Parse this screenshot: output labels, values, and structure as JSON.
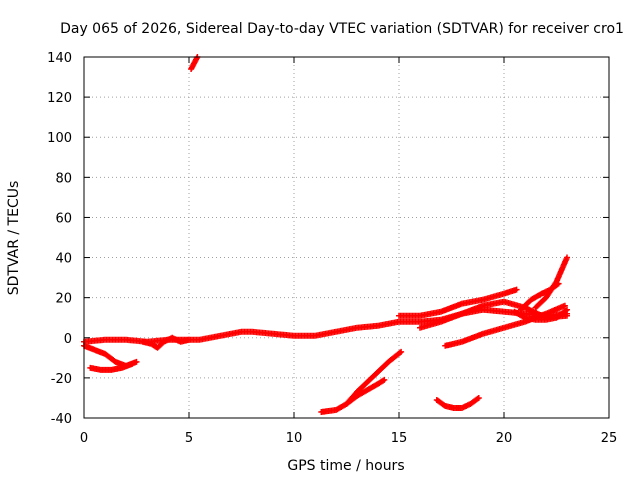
{
  "chart_data": {
    "type": "scatter",
    "title": "Day 065 of 2026, Sidereal Day-to-day VTEC variation (SDTVAR) for receiver cro1",
    "xlabel": "GPS time / hours",
    "ylabel": "SDTVAR / TECUs",
    "xlim": [
      0,
      25
    ],
    "ylim": [
      -40,
      140
    ],
    "xticks": [
      0,
      5,
      10,
      15,
      20,
      25
    ],
    "yticks": [
      -40,
      -20,
      0,
      20,
      40,
      60,
      80,
      100,
      120,
      140
    ],
    "xtick_labels": [
      "0",
      "5",
      "10",
      "15",
      "20",
      "25"
    ],
    "ytick_labels": [
      "-40",
      "-20",
      "0",
      "20",
      "40",
      "60",
      "80",
      "100",
      "120",
      "140"
    ],
    "grid": true,
    "marker": "+",
    "color": "#ff0000",
    "series": [
      {
        "name": "main-trace",
        "x": [
          0,
          1,
          2,
          3,
          4,
          5,
          5.5,
          6,
          7,
          7.5,
          8,
          9,
          10,
          11,
          12,
          13,
          14,
          15,
          16,
          17,
          18,
          19,
          20,
          21,
          22,
          23
        ],
        "y": [
          -2,
          -1,
          -1,
          -2,
          -1,
          -1,
          -1,
          0,
          2,
          3,
          3,
          2,
          1,
          1,
          3,
          5,
          6,
          8,
          8,
          9,
          12,
          14,
          13,
          12,
          11,
          12
        ]
      },
      {
        "name": "early-dip",
        "x": [
          0,
          0.5,
          1,
          1.5,
          2,
          2.5
        ],
        "y": [
          -4,
          -6,
          -8,
          -12,
          -14,
          -12
        ]
      },
      {
        "name": "low-start",
        "x": [
          0.3,
          0.8,
          1.3,
          1.8,
          2.3
        ],
        "y": [
          -15,
          -16,
          -16,
          -15,
          -13
        ]
      },
      {
        "name": "wiggle-3-5",
        "x": [
          2.8,
          3.2,
          3.5,
          3.8,
          4.2,
          4.6,
          5.0
        ],
        "y": [
          -2,
          -3,
          -5,
          -2,
          0,
          -2,
          -1
        ]
      },
      {
        "name": "high-spike",
        "x": [
          5.1,
          5.2,
          5.3,
          5.4
        ],
        "y": [
          134,
          136,
          138,
          140
        ]
      },
      {
        "name": "descending-arc",
        "x": [
          11.3,
          12,
          12.5,
          13,
          13.5,
          14,
          14.3
        ],
        "y": [
          -37,
          -36,
          -33,
          -29,
          -26,
          -23,
          -21
        ]
      },
      {
        "name": "rise-to-15",
        "x": [
          12.5,
          13,
          13.5,
          14,
          14.5,
          15.1
        ],
        "y": [
          -33,
          -27,
          -22,
          -17,
          -12,
          -7
        ]
      },
      {
        "name": "arc-17-18",
        "x": [
          16.8,
          17.2,
          17.6,
          18.0,
          18.4,
          18.8
        ],
        "y": [
          -31,
          -34,
          -35,
          -35,
          -33,
          -30
        ]
      },
      {
        "name": "rise-from-17",
        "x": [
          17.2,
          18,
          19,
          20,
          21,
          22,
          22.9
        ],
        "y": [
          -4,
          -2,
          2,
          5,
          8,
          12,
          16
        ]
      },
      {
        "name": "upper-band-15-20",
        "x": [
          15,
          16,
          17,
          18,
          19,
          20,
          20.6
        ],
        "y": [
          11,
          11,
          13,
          17,
          19,
          22,
          24
        ]
      },
      {
        "name": "mid-band-16-23",
        "x": [
          16,
          17,
          18,
          19,
          20,
          21,
          22,
          23
        ],
        "y": [
          5,
          8,
          12,
          16,
          18,
          15,
          10,
          11
        ]
      },
      {
        "name": "steep-end-rise",
        "x": [
          21.5,
          22,
          22.5,
          23
        ],
        "y": [
          15,
          20,
          28,
          40
        ]
      },
      {
        "name": "bump-21",
        "x": [
          20.8,
          21.3,
          21.8,
          22.2,
          22.6
        ],
        "y": [
          14,
          19,
          22,
          24,
          27
        ]
      },
      {
        "name": "lower-band-20-23",
        "x": [
          20.5,
          21,
          21.5,
          22,
          22.5,
          23
        ],
        "y": [
          13,
          10,
          9,
          9,
          10,
          14
        ]
      }
    ]
  }
}
